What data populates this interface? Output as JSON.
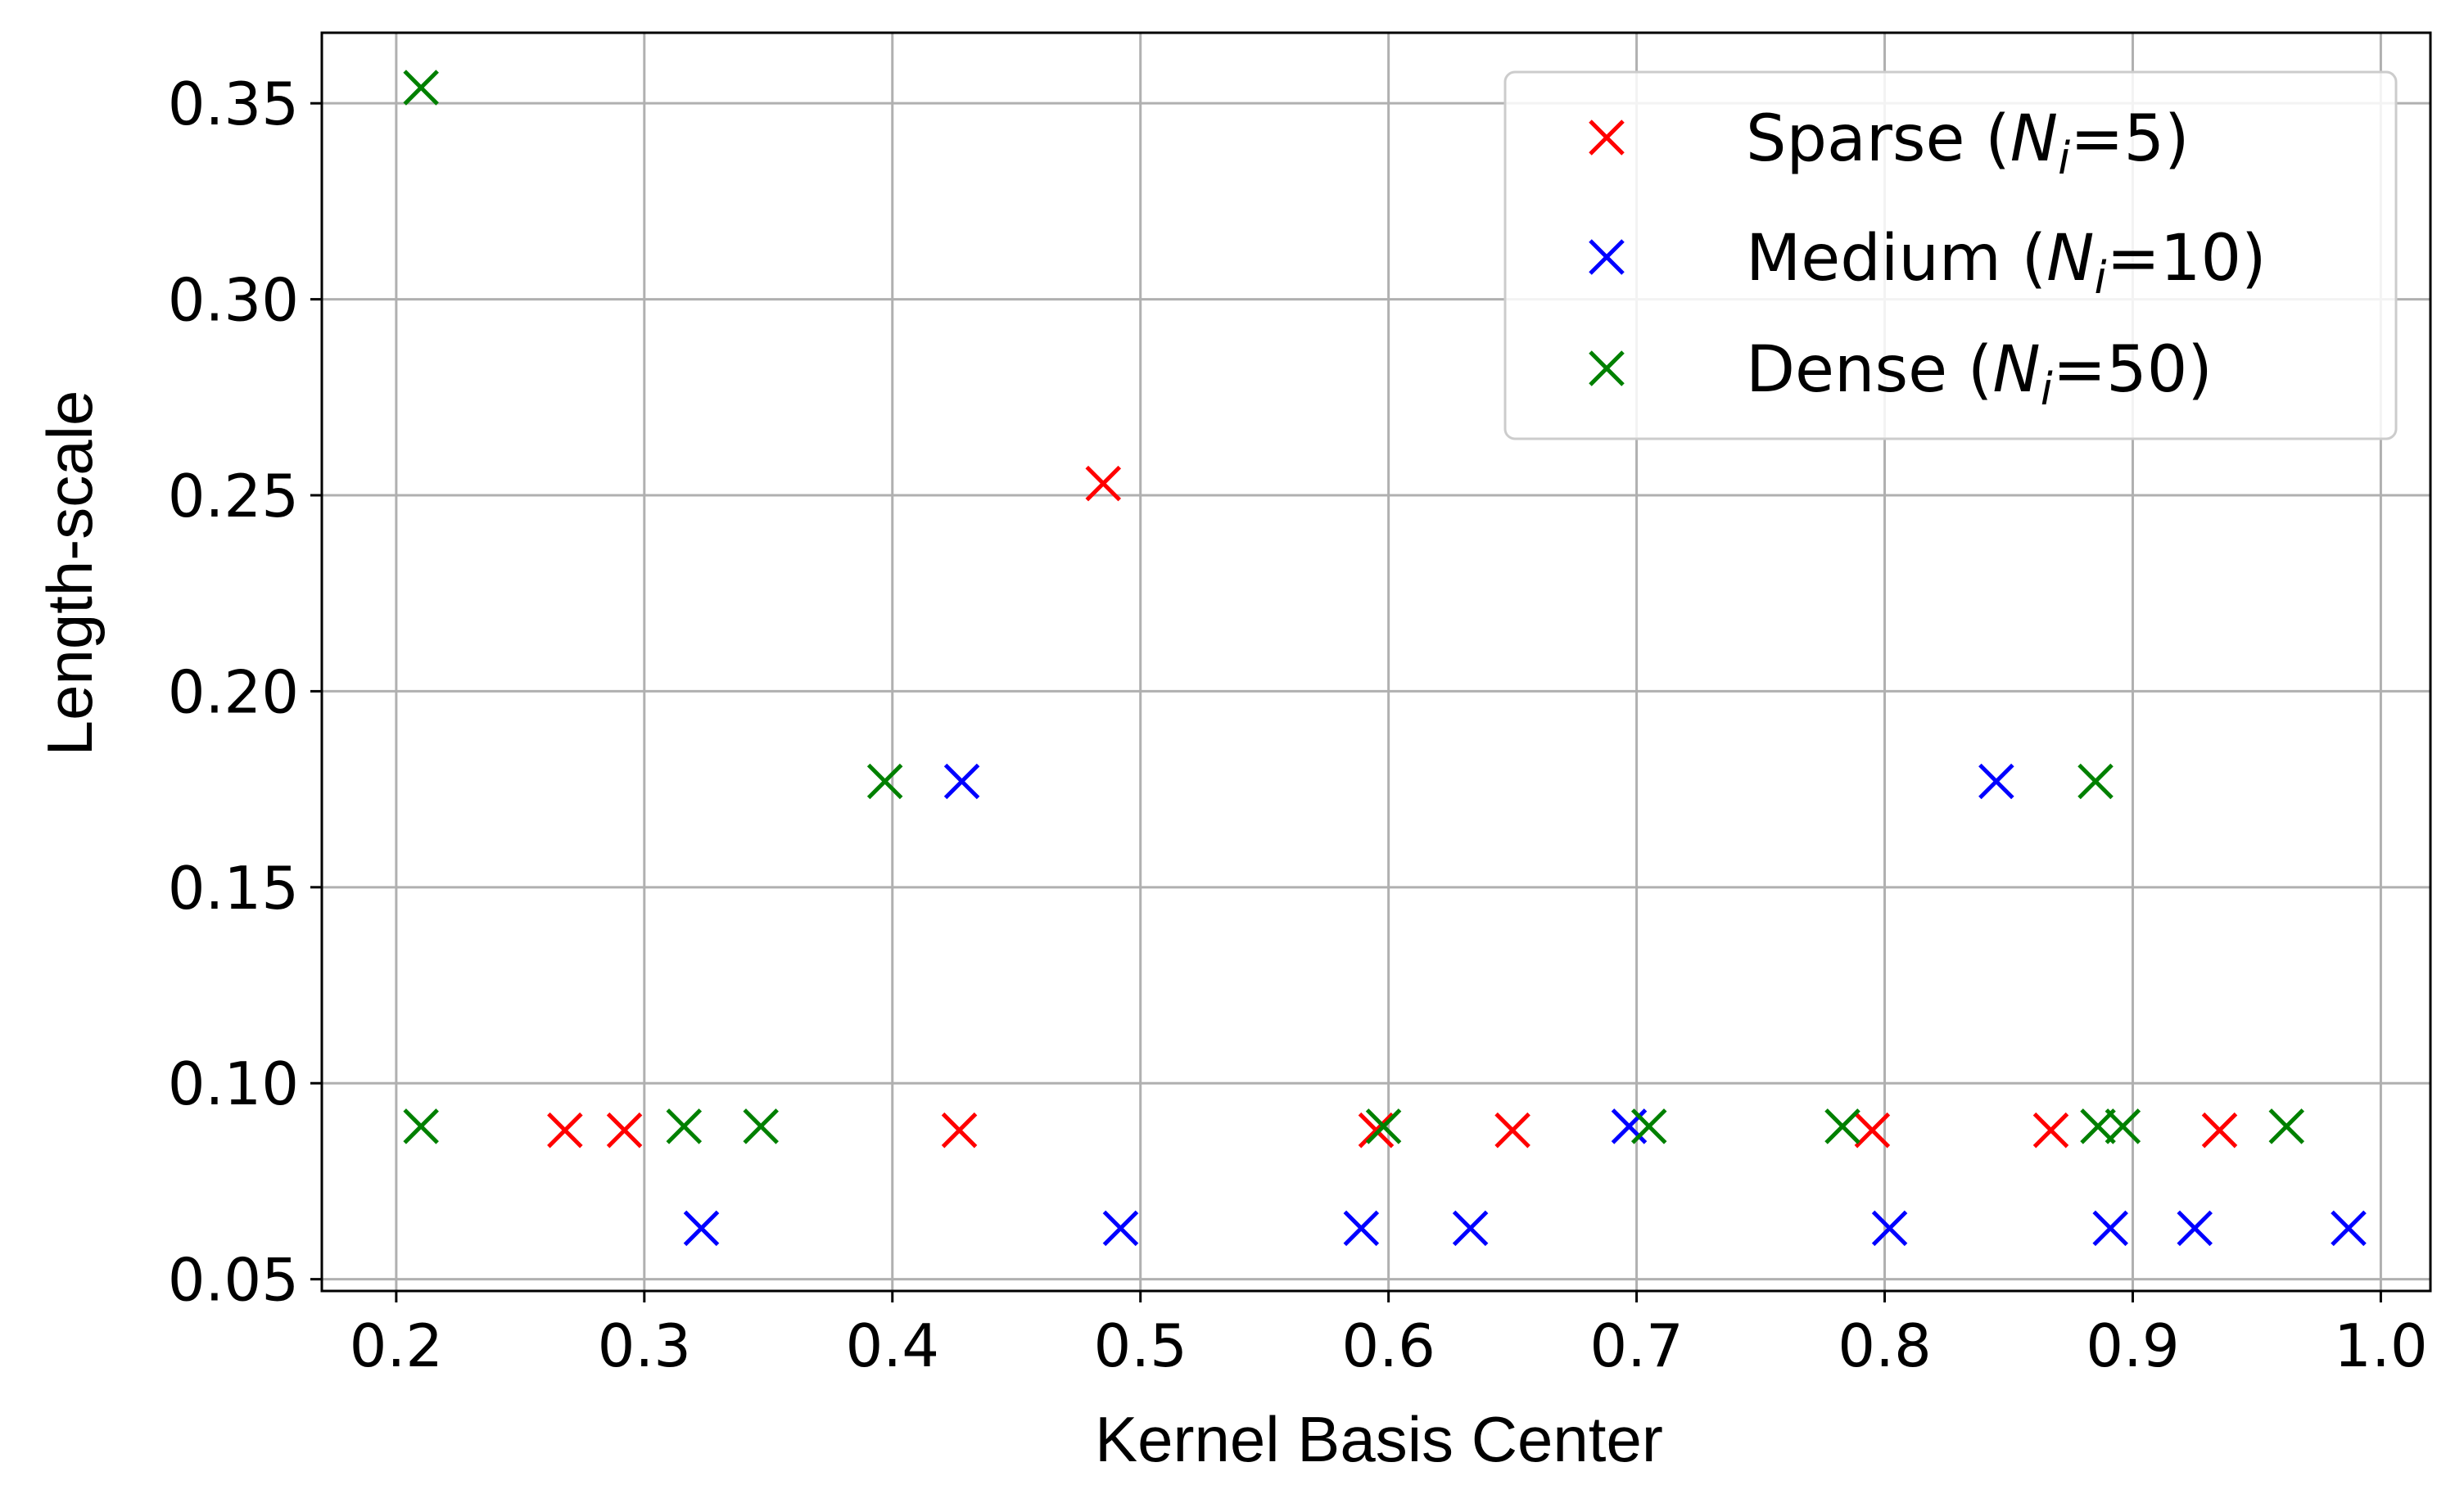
{
  "chart_data": {
    "type": "scatter",
    "title": "",
    "xlabel": "Kernel Basis Center",
    "ylabel": "Length-scale",
    "xlim": [
      0.17,
      1.02
    ],
    "ylim": [
      0.047,
      0.368
    ],
    "xticks": [
      0.2,
      0.3,
      0.4,
      0.5,
      0.6,
      0.7,
      0.8,
      0.9,
      1.0
    ],
    "xtick_labels": [
      "0.2",
      "0.3",
      "0.4",
      "0.5",
      "0.6",
      "0.7",
      "0.8",
      "0.9",
      "1.0"
    ],
    "yticks": [
      0.05,
      0.1,
      0.15,
      0.2,
      0.25,
      0.3,
      0.35
    ],
    "ytick_labels": [
      "0.05",
      "0.10",
      "0.15",
      "0.20",
      "0.25",
      "0.30",
      "0.35"
    ],
    "grid": true,
    "legend_position": "top-right",
    "marker": "x",
    "series": [
      {
        "name": "Sparse (Ni=5)",
        "legend_prefix": "Sparse (",
        "legend_var": "N",
        "legend_sub": "i",
        "legend_suffix": "=5)",
        "color": "#ff0000",
        "points": [
          {
            "x": 0.268,
            "y": 0.088
          },
          {
            "x": 0.292,
            "y": 0.088
          },
          {
            "x": 0.427,
            "y": 0.088
          },
          {
            "x": 0.485,
            "y": 0.253
          },
          {
            "x": 0.595,
            "y": 0.088
          },
          {
            "x": 0.65,
            "y": 0.088
          },
          {
            "x": 0.795,
            "y": 0.088
          },
          {
            "x": 0.867,
            "y": 0.088
          },
          {
            "x": 0.935,
            "y": 0.088
          }
        ]
      },
      {
        "name": "Medium (Ni=10)",
        "legend_prefix": "Medium (",
        "legend_var": "N",
        "legend_sub": "i",
        "legend_suffix": "=10)",
        "color": "#0000ff",
        "points": [
          {
            "x": 0.323,
            "y": 0.063
          },
          {
            "x": 0.428,
            "y": 0.177
          },
          {
            "x": 0.492,
            "y": 0.063
          },
          {
            "x": 0.589,
            "y": 0.063
          },
          {
            "x": 0.633,
            "y": 0.063
          },
          {
            "x": 0.697,
            "y": 0.089
          },
          {
            "x": 0.802,
            "y": 0.063
          },
          {
            "x": 0.845,
            "y": 0.177
          },
          {
            "x": 0.891,
            "y": 0.063
          },
          {
            "x": 0.925,
            "y": 0.063
          },
          {
            "x": 0.987,
            "y": 0.063
          }
        ]
      },
      {
        "name": "Dense (Ni=50)",
        "legend_prefix": "Dense (",
        "legend_var": "N",
        "legend_sub": "i",
        "legend_suffix": "=50)",
        "color": "#008000",
        "points": [
          {
            "x": 0.21,
            "y": 0.354
          },
          {
            "x": 0.21,
            "y": 0.089
          },
          {
            "x": 0.316,
            "y": 0.089
          },
          {
            "x": 0.347,
            "y": 0.089
          },
          {
            "x": 0.397,
            "y": 0.177
          },
          {
            "x": 0.598,
            "y": 0.089
          },
          {
            "x": 0.705,
            "y": 0.089
          },
          {
            "x": 0.783,
            "y": 0.089
          },
          {
            "x": 0.885,
            "y": 0.177
          },
          {
            "x": 0.886,
            "y": 0.089
          },
          {
            "x": 0.896,
            "y": 0.089
          },
          {
            "x": 0.962,
            "y": 0.089
          }
        ]
      }
    ]
  }
}
